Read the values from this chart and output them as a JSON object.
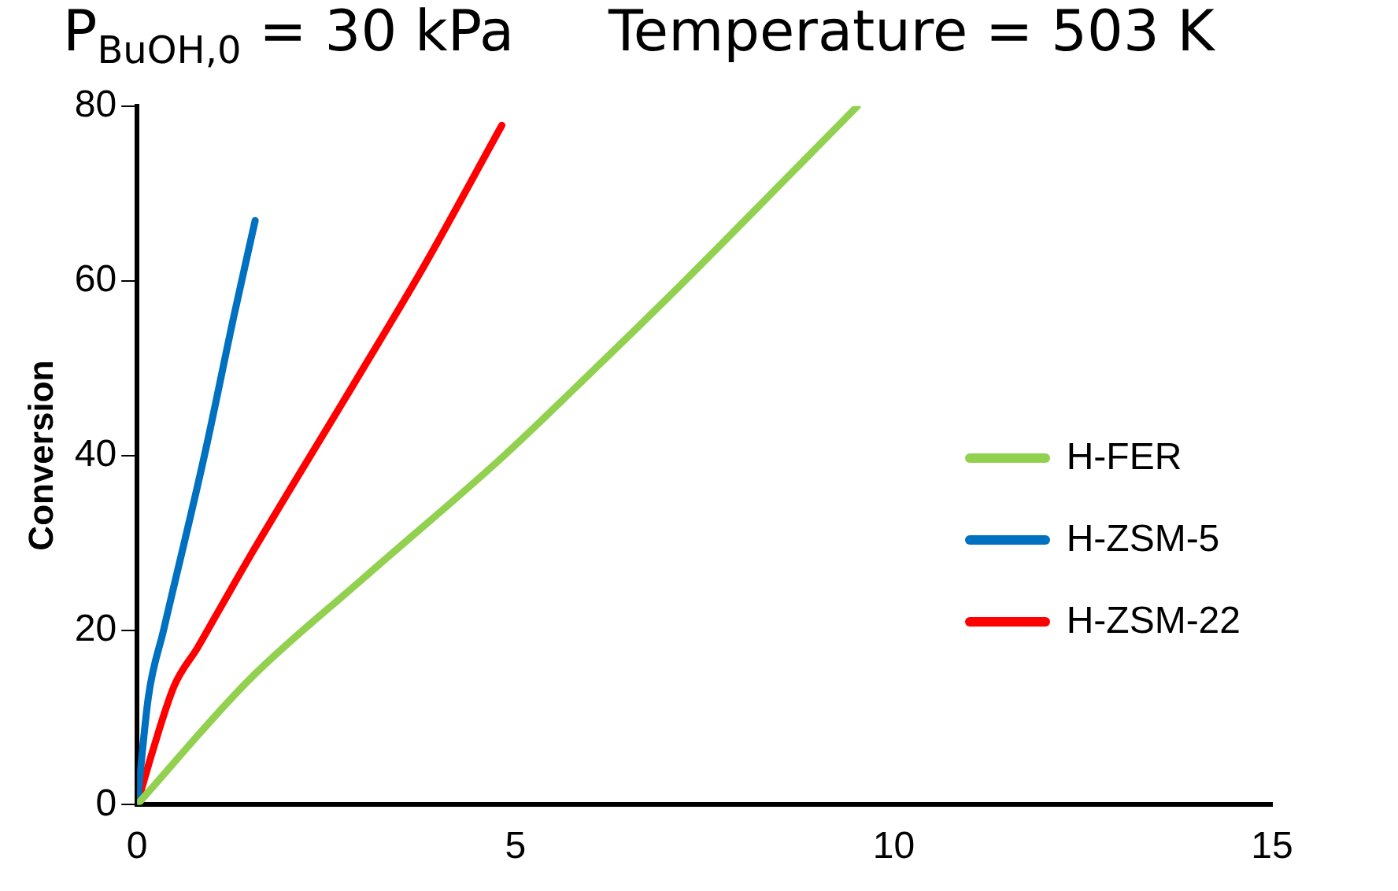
{
  "chart_data": {
    "type": "line",
    "title": "P$_{BuOH,0}$ = 30 kPa",
    "subtitle": "Temperature = 503 K",
    "ylabel": "Conversion",
    "xlim": [
      0,
      15
    ],
    "xticks": [
      0,
      5,
      10,
      15
    ],
    "ylim": [
      0,
      80
    ],
    "yticks": [
      0,
      20,
      40,
      60,
      80
    ],
    "grid": false,
    "legend": "right",
    "marker": "none",
    "line_style": "solid",
    "series": [
      {
        "name": "H-FER",
        "color": "#92d050",
        "x": [
          0,
          1.48,
          3,
          4.84,
          6,
          7.24,
          8.52,
          9.52
        ],
        "values": [
          0,
          14.3,
          26,
          39.9,
          49.5,
          60,
          71.2,
          80
        ]
      },
      {
        "name": "H-ZSM-5",
        "color": "#0070c0",
        "x": [
          0,
          0.15,
          0.35,
          0.89,
          1.28,
          1.56
        ],
        "values": [
          0,
          12.4,
          20,
          40,
          56,
          66.9
        ]
      },
      {
        "name": "H-ZSM-22",
        "color": "#ff0000",
        "x": [
          0,
          0.2,
          0.49,
          0.8,
          1.13,
          1.55,
          2.9,
          3.8,
          4.82
        ],
        "values": [
          0,
          6,
          13.6,
          18,
          23,
          29.3,
          48.7,
          61.8,
          77.8
        ]
      }
    ]
  }
}
